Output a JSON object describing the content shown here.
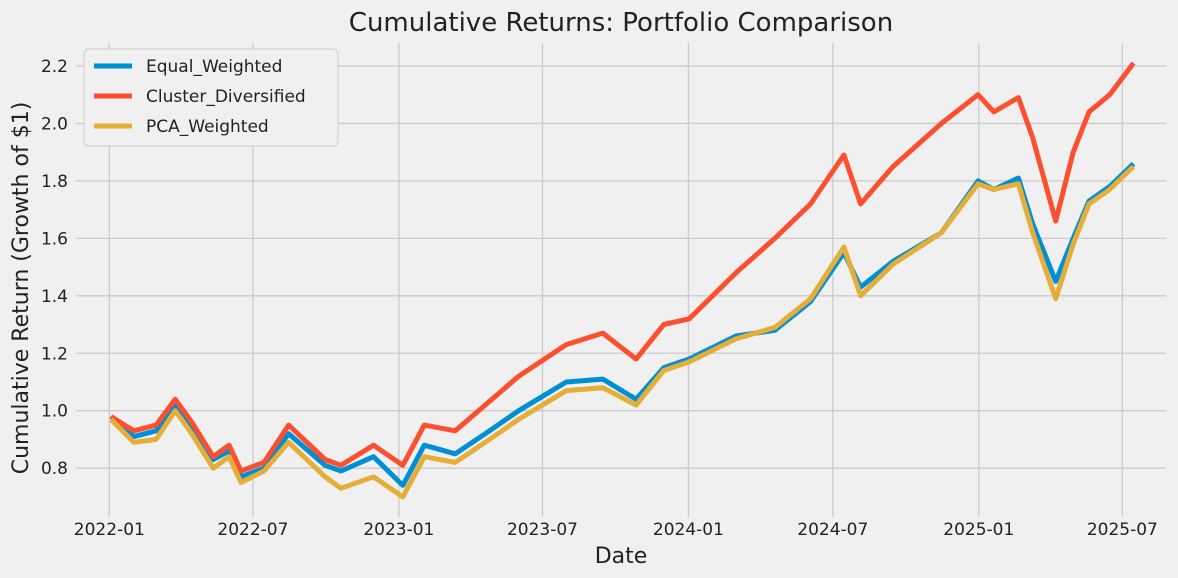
{
  "chart_data": {
    "type": "line",
    "title": "Cumulative Returns: Portfolio Comparison",
    "xlabel": "Date",
    "ylabel": "Cumulative Return (Growth of $1)",
    "x_ticks": [
      "2022-01",
      "2022-07",
      "2023-01",
      "2023-07",
      "2024-01",
      "2024-07",
      "2025-01",
      "2025-07"
    ],
    "y_ticks": [
      0.8,
      1.0,
      1.2,
      1.4,
      1.6,
      1.8,
      2.0,
      2.2
    ],
    "ylim": [
      0.63,
      2.28
    ],
    "xlim": [
      "2021-11-20",
      "2025-08-25"
    ],
    "grid": true,
    "legend_position": "top-left",
    "series": [
      {
        "name": "Equal_Weighted",
        "color": "#008fd5",
        "points": [
          [
            "2022-01-03",
            0.98
          ],
          [
            "2022-02-01",
            0.91
          ],
          [
            "2022-03-01",
            0.93
          ],
          [
            "2022-03-25",
            1.02
          ],
          [
            "2022-04-15",
            0.94
          ],
          [
            "2022-05-12",
            0.83
          ],
          [
            "2022-06-01",
            0.86
          ],
          [
            "2022-06-16",
            0.77
          ],
          [
            "2022-07-15",
            0.8
          ],
          [
            "2022-08-15",
            0.92
          ],
          [
            "2022-09-30",
            0.81
          ],
          [
            "2022-10-20",
            0.79
          ],
          [
            "2022-11-30",
            0.84
          ],
          [
            "2023-01-06",
            0.74
          ],
          [
            "2023-02-02",
            0.88
          ],
          [
            "2023-03-13",
            0.85
          ],
          [
            "2023-04-20",
            0.92
          ],
          [
            "2023-06-01",
            1.0
          ],
          [
            "2023-07-31",
            1.1
          ],
          [
            "2023-09-15",
            1.11
          ],
          [
            "2023-10-27",
            1.04
          ],
          [
            "2023-12-01",
            1.15
          ],
          [
            "2024-01-02",
            1.18
          ],
          [
            "2024-03-01",
            1.26
          ],
          [
            "2024-04-19",
            1.28
          ],
          [
            "2024-06-03",
            1.38
          ],
          [
            "2024-07-15",
            1.55
          ],
          [
            "2024-08-05",
            1.43
          ],
          [
            "2024-09-15",
            1.52
          ],
          [
            "2024-11-15",
            1.62
          ],
          [
            "2024-12-31",
            1.8
          ],
          [
            "2025-01-20",
            1.77
          ],
          [
            "2025-02-20",
            1.81
          ],
          [
            "2025-03-10",
            1.65
          ],
          [
            "2025-04-08",
            1.45
          ],
          [
            "2025-04-30",
            1.6
          ],
          [
            "2025-05-20",
            1.73
          ],
          [
            "2025-06-15",
            1.78
          ],
          [
            "2025-07-15",
            1.86
          ]
        ]
      },
      {
        "name": "Cluster_Diversified",
        "color": "#fc4f30",
        "points": [
          [
            "2022-01-03",
            0.98
          ],
          [
            "2022-02-01",
            0.93
          ],
          [
            "2022-03-01",
            0.95
          ],
          [
            "2022-03-25",
            1.04
          ],
          [
            "2022-04-15",
            0.96
          ],
          [
            "2022-05-12",
            0.84
          ],
          [
            "2022-06-01",
            0.88
          ],
          [
            "2022-06-16",
            0.79
          ],
          [
            "2022-07-15",
            0.82
          ],
          [
            "2022-08-15",
            0.95
          ],
          [
            "2022-09-30",
            0.83
          ],
          [
            "2022-10-20",
            0.81
          ],
          [
            "2022-11-30",
            0.88
          ],
          [
            "2023-01-06",
            0.81
          ],
          [
            "2023-02-02",
            0.95
          ],
          [
            "2023-03-13",
            0.93
          ],
          [
            "2023-04-20",
            1.02
          ],
          [
            "2023-06-01",
            1.12
          ],
          [
            "2023-07-31",
            1.23
          ],
          [
            "2023-09-15",
            1.27
          ],
          [
            "2023-10-27",
            1.18
          ],
          [
            "2023-12-01",
            1.3
          ],
          [
            "2024-01-02",
            1.32
          ],
          [
            "2024-03-01",
            1.48
          ],
          [
            "2024-04-19",
            1.6
          ],
          [
            "2024-06-03",
            1.72
          ],
          [
            "2024-07-15",
            1.89
          ],
          [
            "2024-08-05",
            1.72
          ],
          [
            "2024-09-15",
            1.85
          ],
          [
            "2024-11-15",
            2.0
          ],
          [
            "2024-12-31",
            2.1
          ],
          [
            "2025-01-20",
            2.04
          ],
          [
            "2025-02-20",
            2.09
          ],
          [
            "2025-03-10",
            1.95
          ],
          [
            "2025-04-08",
            1.66
          ],
          [
            "2025-04-30",
            1.9
          ],
          [
            "2025-05-20",
            2.04
          ],
          [
            "2025-06-15",
            2.1
          ],
          [
            "2025-07-15",
            2.21
          ]
        ]
      },
      {
        "name": "PCA_Weighted",
        "color": "#e5ae38",
        "points": [
          [
            "2022-01-03",
            0.97
          ],
          [
            "2022-02-01",
            0.89
          ],
          [
            "2022-03-01",
            0.9
          ],
          [
            "2022-03-25",
            1.0
          ],
          [
            "2022-04-15",
            0.92
          ],
          [
            "2022-05-12",
            0.8
          ],
          [
            "2022-06-01",
            0.84
          ],
          [
            "2022-06-16",
            0.75
          ],
          [
            "2022-07-15",
            0.79
          ],
          [
            "2022-08-15",
            0.89
          ],
          [
            "2022-09-30",
            0.77
          ],
          [
            "2022-10-20",
            0.73
          ],
          [
            "2022-11-30",
            0.77
          ],
          [
            "2023-01-06",
            0.7
          ],
          [
            "2023-02-02",
            0.84
          ],
          [
            "2023-03-13",
            0.82
          ],
          [
            "2023-04-20",
            0.89
          ],
          [
            "2023-06-01",
            0.97
          ],
          [
            "2023-07-31",
            1.07
          ],
          [
            "2023-09-15",
            1.08
          ],
          [
            "2023-10-27",
            1.02
          ],
          [
            "2023-12-01",
            1.14
          ],
          [
            "2024-01-02",
            1.17
          ],
          [
            "2024-03-01",
            1.25
          ],
          [
            "2024-04-19",
            1.29
          ],
          [
            "2024-06-03",
            1.39
          ],
          [
            "2024-07-15",
            1.57
          ],
          [
            "2024-08-05",
            1.4
          ],
          [
            "2024-09-15",
            1.51
          ],
          [
            "2024-11-15",
            1.62
          ],
          [
            "2024-12-31",
            1.79
          ],
          [
            "2025-01-20",
            1.77
          ],
          [
            "2025-02-20",
            1.79
          ],
          [
            "2025-03-10",
            1.62
          ],
          [
            "2025-04-08",
            1.39
          ],
          [
            "2025-04-30",
            1.58
          ],
          [
            "2025-05-20",
            1.72
          ],
          [
            "2025-06-15",
            1.77
          ],
          [
            "2025-07-15",
            1.85
          ]
        ]
      }
    ]
  }
}
